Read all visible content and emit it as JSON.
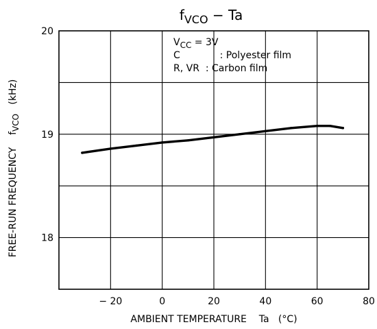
{
  "chart_data": {
    "type": "line",
    "title": {
      "main": "f",
      "sub": "VCO",
      "rest": " − Ta"
    },
    "xlabel": "AMBIENT TEMPERATURE    Ta   (°C)",
    "ylabel": {
      "main": "FREE-RUN FREQUENCY    f",
      "sub": "VCO",
      "rest": "   (kHz)"
    },
    "xlim": [
      -40,
      80
    ],
    "ylim": [
      17.5,
      20
    ],
    "x_ticks": [
      -20,
      0,
      20,
      40,
      60,
      80
    ],
    "x_tick_labels": [
      "− 20",
      "0",
      "20",
      "40",
      "60",
      "80"
    ],
    "y_ticks": [
      18,
      19,
      20
    ],
    "y_tick_labels": [
      "18",
      "19",
      "20"
    ],
    "grid": true,
    "conditions": [
      {
        "main": "V",
        "sub": "CC",
        "rest": " = 3V"
      },
      {
        "main": "C             : Polyester film"
      },
      {
        "main": "R, VR  : Carbon film"
      }
    ],
    "series": [
      {
        "x": [
          -31,
          -20,
          -10,
          0,
          10,
          20,
          30,
          40,
          50,
          60,
          65,
          70
        ],
        "y": [
          18.82,
          18.86,
          18.89,
          18.92,
          18.94,
          18.97,
          19.0,
          19.03,
          19.06,
          19.08,
          19.08,
          19.06
        ]
      }
    ]
  }
}
